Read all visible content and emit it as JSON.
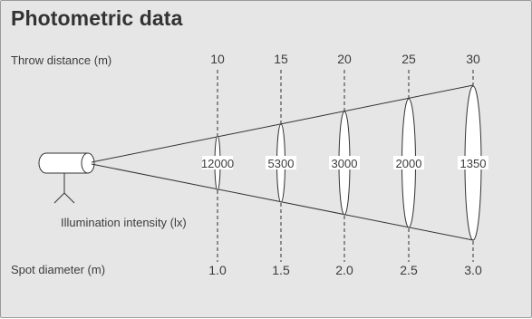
{
  "title": "Photometric data",
  "labels": {
    "throw_distance": "Throw distance (m)",
    "illumination_intensity": "Illumination intensity (lx)",
    "spot_diameter": "Spot diameter (m)"
  },
  "columns": [
    {
      "distance": "10",
      "lux": "12000",
      "diameter": "1.0"
    },
    {
      "distance": "15",
      "lux": "5300",
      "diameter": "1.5"
    },
    {
      "distance": "20",
      "lux": "3000",
      "diameter": "2.0"
    },
    {
      "distance": "25",
      "lux": "2000",
      "diameter": "2.5"
    },
    {
      "distance": "30",
      "lux": "1350",
      "diameter": "3.0"
    }
  ],
  "colors": {
    "background": "#e6e6e6",
    "line": "#333333",
    "text": "#3c3c3c"
  }
}
